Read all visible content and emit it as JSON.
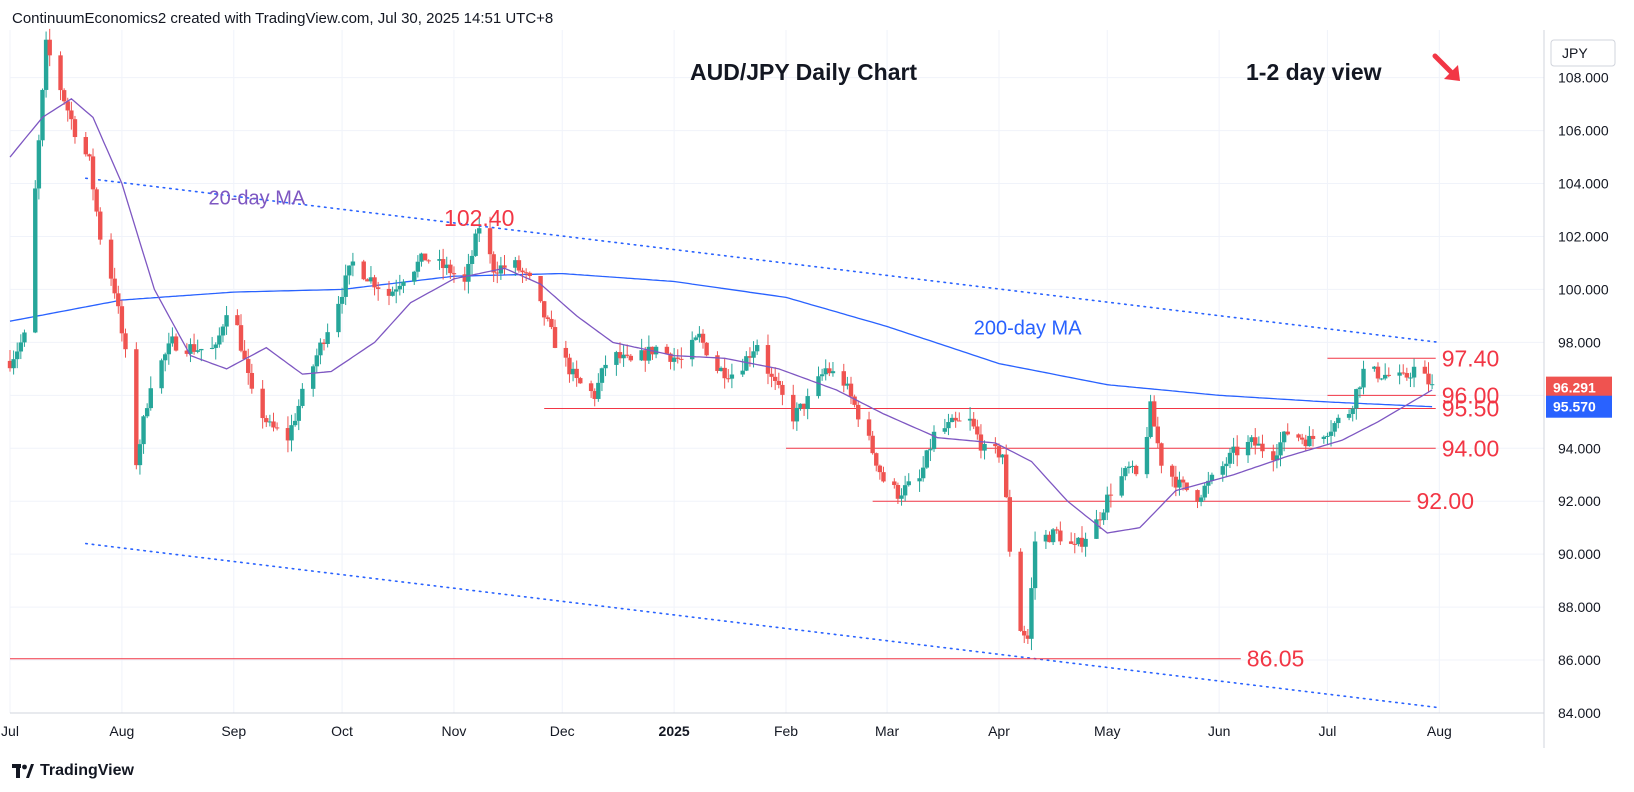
{
  "header": {
    "attribution": "ContinuumEconomics2 created with TradingView.com, Jul 30, 2025 14:51 UTC+8"
  },
  "footer": {
    "brand": "TradingView"
  },
  "colors": {
    "up": "#26a69a",
    "down": "#ef5350",
    "ma20": "#7e57c2",
    "ma200": "#2962ff",
    "label_red": "#f23645",
    "trend": "#2962ff",
    "grid": "#f0f3fa"
  },
  "icons": {
    "direction": "down-right-arrow-icon",
    "logo": "tradingview-logo-icon"
  },
  "chart_data": {
    "type": "candlestick",
    "title": "AUD/JPY Daily Chart",
    "subtitle": "1-2 day view",
    "currency": "JPY",
    "y_range": [
      84.0,
      109.8
    ],
    "y_ticks": [
      84,
      86,
      88,
      90,
      92,
      94,
      96,
      98,
      100,
      102,
      104,
      106,
      108
    ],
    "y_tick_labels": [
      "84.000",
      "86.000",
      "88.000",
      "90.000",
      "92.000",
      "94.000",
      "96.000",
      "98.000",
      "100.000",
      "102.000",
      "104.000",
      "106.000",
      "108.000"
    ],
    "x_range": [
      "2024-07-01",
      "2025-08-30"
    ],
    "x_ticks": [
      {
        "date": "2024-07-01",
        "label": "Jul",
        "bold": false
      },
      {
        "date": "2024-08-01",
        "label": "Aug",
        "bold": false
      },
      {
        "date": "2024-09-01",
        "label": "Sep",
        "bold": false
      },
      {
        "date": "2024-10-01",
        "label": "Oct",
        "bold": false
      },
      {
        "date": "2024-11-01",
        "label": "Nov",
        "bold": false
      },
      {
        "date": "2024-12-01",
        "label": "Dec",
        "bold": false
      },
      {
        "date": "2025-01-01",
        "label": "2025",
        "bold": true
      },
      {
        "date": "2025-02-01",
        "label": "Feb",
        "bold": false
      },
      {
        "date": "2025-03-01",
        "label": "Mar",
        "bold": false
      },
      {
        "date": "2025-04-01",
        "label": "Apr",
        "bold": false
      },
      {
        "date": "2025-05-01",
        "label": "May",
        "bold": false
      },
      {
        "date": "2025-06-01",
        "label": "Jun",
        "bold": false
      },
      {
        "date": "2025-07-01",
        "label": "Jul",
        "bold": false
      },
      {
        "date": "2025-08-01",
        "label": "Aug",
        "bold": false
      }
    ],
    "price_anchors": [
      [
        "2024-07-01",
        97.3
      ],
      [
        "2024-07-05",
        98.2
      ],
      [
        "2024-07-11",
        109.2
      ],
      [
        "2024-07-15",
        107.6
      ],
      [
        "2024-07-19",
        106.0
      ],
      [
        "2024-07-23",
        104.8
      ],
      [
        "2024-07-26",
        102.0
      ],
      [
        "2024-07-30",
        100.0
      ],
      [
        "2024-08-02",
        97.5
      ],
      [
        "2024-08-05",
        93.5
      ],
      [
        "2024-08-09",
        96.5
      ],
      [
        "2024-08-15",
        98.0
      ],
      [
        "2024-08-20",
        97.8
      ],
      [
        "2024-08-27",
        97.7
      ],
      [
        "2024-08-31",
        99.8
      ],
      [
        "2024-09-06",
        96.0
      ],
      [
        "2024-09-11",
        94.8
      ],
      [
        "2024-09-16",
        94.4
      ],
      [
        "2024-09-20",
        96.0
      ],
      [
        "2024-09-24",
        97.5
      ],
      [
        "2024-09-30",
        99.6
      ],
      [
        "2024-10-04",
        101.0
      ],
      [
        "2024-10-09",
        100.4
      ],
      [
        "2024-10-14",
        99.8
      ],
      [
        "2024-10-18",
        100.5
      ],
      [
        "2024-10-24",
        101.2
      ],
      [
        "2024-10-31",
        100.7
      ],
      [
        "2024-11-04",
        100.2
      ],
      [
        "2024-11-08",
        102.4
      ],
      [
        "2024-11-12",
        100.8
      ],
      [
        "2024-11-18",
        100.9
      ],
      [
        "2024-11-22",
        100.3
      ],
      [
        "2024-11-26",
        99.0
      ],
      [
        "2024-11-29",
        98.0
      ],
      [
        "2024-12-05",
        96.5
      ],
      [
        "2024-12-10",
        96.0
      ],
      [
        "2024-12-14",
        97.6
      ],
      [
        "2024-12-20",
        97.2
      ],
      [
        "2024-12-27",
        97.8
      ],
      [
        "2025-01-03",
        97.3
      ],
      [
        "2025-01-08",
        98.2
      ],
      [
        "2025-01-13",
        97.0
      ],
      [
        "2025-01-18",
        96.8
      ],
      [
        "2025-01-24",
        98.0
      ],
      [
        "2025-01-28",
        96.6
      ],
      [
        "2025-02-03",
        95.2
      ],
      [
        "2025-02-07",
        95.8
      ],
      [
        "2025-02-12",
        97.0
      ],
      [
        "2025-02-17",
        96.5
      ],
      [
        "2025-02-22",
        95.0
      ],
      [
        "2025-02-28",
        92.8
      ],
      [
        "2025-03-04",
        92.3
      ],
      [
        "2025-03-10",
        92.8
      ],
      [
        "2025-03-14",
        94.5
      ],
      [
        "2025-03-19",
        94.9
      ],
      [
        "2025-03-24",
        95.0
      ],
      [
        "2025-03-28",
        93.9
      ],
      [
        "2025-04-02",
        93.8
      ],
      [
        "2025-04-04",
        90.2
      ],
      [
        "2025-04-07",
        87.2
      ],
      [
        "2025-04-09",
        86.8
      ],
      [
        "2025-04-11",
        90.5
      ],
      [
        "2025-04-17",
        90.8
      ],
      [
        "2025-04-22",
        90.2
      ],
      [
        "2025-04-28",
        91.2
      ],
      [
        "2025-05-02",
        92.4
      ],
      [
        "2025-05-07",
        93.2
      ],
      [
        "2025-05-10",
        92.8
      ],
      [
        "2025-05-13",
        95.5
      ],
      [
        "2025-05-16",
        93.5
      ],
      [
        "2025-05-21",
        92.6
      ],
      [
        "2025-05-26",
        92.2
      ],
      [
        "2025-05-30",
        92.8
      ],
      [
        "2025-06-05",
        93.8
      ],
      [
        "2025-06-10",
        94.2
      ],
      [
        "2025-06-16",
        93.8
      ],
      [
        "2025-06-20",
        94.6
      ],
      [
        "2025-06-26",
        94.3
      ],
      [
        "2025-07-02",
        94.8
      ],
      [
        "2025-07-07",
        95.4
      ],
      [
        "2025-07-11",
        96.9
      ],
      [
        "2025-07-16",
        96.8
      ],
      [
        "2025-07-22",
        96.6
      ],
      [
        "2025-07-25",
        97.0
      ],
      [
        "2025-07-29",
        96.5
      ],
      [
        "2025-07-30",
        96.29
      ]
    ],
    "ma20_anchors": [
      [
        "2024-07-01",
        105.0
      ],
      [
        "2024-07-10",
        106.5
      ],
      [
        "2024-07-18",
        107.2
      ],
      [
        "2024-07-24",
        106.5
      ],
      [
        "2024-08-01",
        104.0
      ],
      [
        "2024-08-10",
        100.0
      ],
      [
        "2024-08-20",
        97.5
      ],
      [
        "2024-08-30",
        97.0
      ],
      [
        "2024-09-10",
        97.8
      ],
      [
        "2024-09-20",
        96.8
      ],
      [
        "2024-09-28",
        96.9
      ],
      [
        "2024-10-10",
        98.0
      ],
      [
        "2024-10-20",
        99.5
      ],
      [
        "2024-11-01",
        100.4
      ],
      [
        "2024-11-15",
        100.8
      ],
      [
        "2024-11-25",
        100.2
      ],
      [
        "2024-12-05",
        99.0
      ],
      [
        "2024-12-15",
        98.0
      ],
      [
        "2025-01-01",
        97.5
      ],
      [
        "2025-01-15",
        97.4
      ],
      [
        "2025-01-30",
        97.0
      ],
      [
        "2025-02-15",
        96.2
      ],
      [
        "2025-02-28",
        95.3
      ],
      [
        "2025-03-15",
        94.4
      ],
      [
        "2025-03-31",
        94.2
      ],
      [
        "2025-04-10",
        93.5
      ],
      [
        "2025-04-20",
        92.0
      ],
      [
        "2025-05-01",
        90.8
      ],
      [
        "2025-05-10",
        91.0
      ],
      [
        "2025-05-20",
        92.4
      ],
      [
        "2025-06-05",
        93.0
      ],
      [
        "2025-06-20",
        93.7
      ],
      [
        "2025-07-05",
        94.3
      ],
      [
        "2025-07-15",
        95.0
      ],
      [
        "2025-07-30",
        96.2
      ]
    ],
    "ma200_anchors": [
      [
        "2024-07-01",
        98.8
      ],
      [
        "2024-08-01",
        99.6
      ],
      [
        "2024-09-01",
        99.9
      ],
      [
        "2024-10-01",
        100.0
      ],
      [
        "2024-11-01",
        100.5
      ],
      [
        "2024-12-01",
        100.6
      ],
      [
        "2025-01-01",
        100.3
      ],
      [
        "2025-02-01",
        99.7
      ],
      [
        "2025-03-01",
        98.6
      ],
      [
        "2025-04-01",
        97.2
      ],
      [
        "2025-05-01",
        96.4
      ],
      [
        "2025-06-01",
        96.0
      ],
      [
        "2025-07-01",
        95.75
      ],
      [
        "2025-07-30",
        95.57
      ]
    ],
    "upper_trendline": [
      [
        "2024-07-22",
        104.2
      ],
      [
        "2025-08-01",
        98.0
      ]
    ],
    "lower_trendline": [
      [
        "2024-07-22",
        90.4
      ],
      [
        "2025-08-01",
        84.2
      ]
    ],
    "levels": [
      {
        "value": 97.4,
        "label": "97.40",
        "from": "2025-07-01",
        "to": "2025-07-31"
      },
      {
        "value": 96.0,
        "label": "96.00",
        "from": "2025-07-01",
        "to": "2025-07-31"
      },
      {
        "value": 95.5,
        "label": "95.50",
        "from": "2024-11-26",
        "to": "2025-07-31"
      },
      {
        "value": 94.0,
        "label": "94.00",
        "from": "2025-02-01",
        "to": "2025-07-31"
      },
      {
        "value": 92.0,
        "label": "92.00",
        "from": "2025-02-25",
        "to": "2025-07-24"
      },
      {
        "value": 86.05,
        "label": "86.05",
        "from": "2024-07-01",
        "to": "2025-06-07"
      }
    ],
    "annotations": [
      {
        "text": "102.40",
        "date": "2024-11-08",
        "value": 102.4
      },
      {
        "text": "20-day MA",
        "date": "2024-08-25",
        "value": 103.2
      },
      {
        "text": "200-day MA",
        "date": "2025-03-25",
        "value": 98.3
      }
    ],
    "last_price": {
      "value": 96.291,
      "label": "96.291"
    },
    "ma200_last": {
      "value": 95.57,
      "label": "95.570"
    }
  }
}
